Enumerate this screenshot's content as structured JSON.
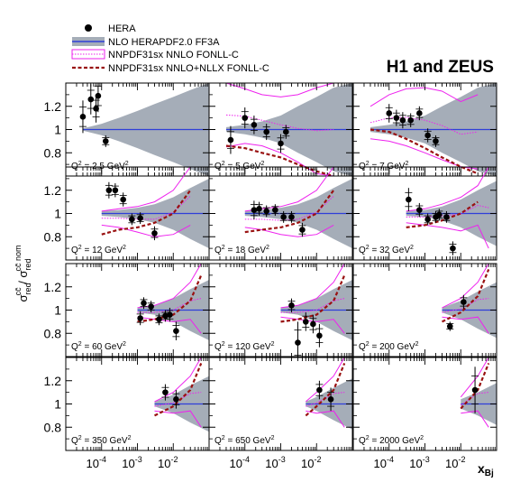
{
  "chart_data": {
    "type": "scatter",
    "title": "H1 and ZEUS",
    "xlabel_main": "x",
    "xlabel_sub": "Bj",
    "ylabel": {
      "num_sigma": "σ",
      "num_sup": "cc̄",
      "num_sub": "red",
      "slash": " / ",
      "den_sigma": "σ",
      "den_sup": "cc̄ nom",
      "den_sub": "red"
    },
    "x_scale": "log",
    "xlim": [
      1e-05,
      0.1
    ],
    "ylim": [
      0.6,
      1.4
    ],
    "x_ticks": [
      {
        "value": 0.0001,
        "base": "10",
        "exp": "-4"
      },
      {
        "value": 0.001,
        "base": "10",
        "exp": "-3"
      },
      {
        "value": 0.01,
        "base": "10",
        "exp": "-2"
      }
    ],
    "y_ticks": [
      {
        "value": 0.8,
        "label": "0.8"
      },
      {
        "value": 1.0,
        "label": "1"
      },
      {
        "value": 1.2,
        "label": "1.2"
      }
    ],
    "legend": {
      "placement": "top-left",
      "entries": [
        {
          "label": "HERA",
          "style": "marker"
        },
        {
          "label": "NLO HERAPDF2.0 FF3A",
          "style": "band"
        },
        {
          "label": "NNPDF31sx NNLO FONLL-C",
          "style": "magenta-box"
        },
        {
          "label": "NNPDF31sx NNLO+NLLX FONLL-C",
          "style": "darkred-dash"
        }
      ]
    },
    "colors": {
      "data": "#000000",
      "herapdf_band": "#a5adb8",
      "herapdf_line": "#2f3fd8",
      "nnlo": "#ee22ee",
      "nllx": "#991111"
    },
    "panels": [
      {
        "q2_label": "Q",
        "q2_sup": "2",
        "q2_value": " = 2.5 GeV",
        "q2_unit_sup": "2",
        "x": [
          3e-05,
          5e-05,
          7e-05,
          8e-05,
          0.00013
        ],
        "y": [
          1.11,
          1.26,
          1.18,
          1.29,
          0.9
        ],
        "y_err": [
          0.14,
          0.13,
          0.12,
          0.14,
          0.05
        ],
        "band": {
          "x": [
            3e-05,
            0.0001,
            0.0003,
            0.001,
            0.003,
            0.01,
            0.03,
            0.1
          ],
          "lo": [
            0.99,
            0.95,
            0.9,
            0.84,
            0.78,
            0.72,
            0.66,
            0.6
          ],
          "hi": [
            1.01,
            1.05,
            1.1,
            1.16,
            1.22,
            1.28,
            1.34,
            1.4
          ]
        },
        "nnlo": null,
        "nllx": null
      },
      {
        "q2_label": "Q",
        "q2_sup": "2",
        "q2_value": " = 5 GeV",
        "q2_unit_sup": "2",
        "x": [
          4e-05,
          0.0001,
          0.00018,
          0.0004,
          0.001,
          0.0014
        ],
        "y": [
          0.91,
          1.1,
          1.04,
          0.98,
          0.88,
          0.98
        ],
        "y_err": [
          0.12,
          0.09,
          0.08,
          0.07,
          0.08,
          0.06
        ],
        "band": {
          "x": [
            3e-05,
            0.0001,
            0.0003,
            0.001,
            0.003,
            0.01,
            0.03,
            0.1
          ],
          "lo": [
            0.98,
            0.96,
            0.93,
            0.88,
            0.8,
            0.72,
            0.64,
            0.6
          ],
          "hi": [
            1.02,
            1.04,
            1.07,
            1.12,
            1.2,
            1.28,
            1.36,
            1.4
          ]
        },
        "nnlo": {
          "x": [
            3e-05,
            0.0001,
            0.0003,
            0.001,
            0.003,
            0.01,
            0.03
          ],
          "lo": [
            0.85,
            0.88,
            0.86,
            0.8,
            0.72,
            0.62,
            0.6
          ],
          "hi": [
            1.4,
            1.35,
            1.3,
            1.28,
            1.3,
            1.36,
            1.4
          ]
        },
        "nllx": {
          "x": [
            3e-05,
            0.0001,
            0.0003,
            0.001,
            0.003,
            0.01,
            0.03
          ],
          "y": [
            0.86,
            0.84,
            0.8,
            0.76,
            0.7,
            0.64,
            0.6
          ]
        }
      },
      {
        "q2_label": "Q",
        "q2_sup": "2",
        "q2_value": " = 7 GeV",
        "q2_unit_sup": "2",
        "x": [
          0.0001,
          0.00016,
          0.00024,
          0.0004,
          0.0007,
          0.0012,
          0.002
        ],
        "y": [
          1.14,
          1.1,
          1.08,
          1.08,
          1.14,
          0.95,
          0.9
        ],
        "y_err": [
          0.08,
          0.07,
          0.07,
          0.06,
          0.06,
          0.06,
          0.05
        ],
        "band": {
          "x": [
            3e-05,
            0.0001,
            0.0003,
            0.001,
            0.003,
            0.01,
            0.03,
            0.1
          ],
          "lo": [
            0.98,
            0.96,
            0.93,
            0.88,
            0.8,
            0.72,
            0.64,
            0.6
          ],
          "hi": [
            1.02,
            1.04,
            1.07,
            1.12,
            1.2,
            1.28,
            1.36,
            1.4
          ]
        },
        "nnlo": {
          "x": [
            3e-05,
            0.0001,
            0.0003,
            0.001,
            0.003,
            0.01,
            0.03
          ],
          "lo": [
            0.92,
            0.9,
            0.86,
            0.8,
            0.74,
            0.68,
            0.66
          ],
          "hi": [
            1.2,
            1.3,
            1.35,
            1.36,
            1.33,
            1.24,
            1.3
          ]
        },
        "nllx": {
          "x": [
            3e-05,
            0.0001,
            0.0003,
            0.001,
            0.003,
            0.01,
            0.03
          ],
          "y": [
            1.0,
            0.98,
            0.92,
            0.84,
            0.76,
            0.68,
            0.62
          ]
        }
      },
      {
        "q2_label": "Q",
        "q2_sup": "2",
        "q2_value": " = 12 GeV",
        "q2_unit_sup": "2",
        "x": [
          0.00016,
          0.00024,
          0.0004,
          0.0007,
          0.0012,
          0.003
        ],
        "y": [
          1.2,
          1.2,
          1.12,
          0.95,
          0.96,
          0.83
        ],
        "y_err": [
          0.07,
          0.06,
          0.06,
          0.05,
          0.05,
          0.06
        ],
        "band": {
          "x": [
            0.0001,
            0.0003,
            0.001,
            0.003,
            0.01,
            0.03,
            0.1
          ],
          "lo": [
            0.98,
            0.97,
            0.95,
            0.92,
            0.86,
            0.78,
            0.7
          ],
          "hi": [
            1.02,
            1.03,
            1.05,
            1.08,
            1.14,
            1.22,
            1.3
          ]
        },
        "nnlo": {
          "x": [
            0.0001,
            0.0003,
            0.001,
            0.003,
            0.01,
            0.03
          ],
          "lo": [
            0.9,
            0.88,
            0.84,
            0.8,
            0.82,
            0.9
          ],
          "hi": [
            1.02,
            1.04,
            1.06,
            1.1,
            1.2,
            1.4
          ]
        },
        "nllx": {
          "x": [
            0.0001,
            0.0003,
            0.001,
            0.003,
            0.01,
            0.03
          ],
          "y": [
            0.82,
            0.86,
            0.88,
            0.92,
            1.0,
            1.2
          ]
        }
      },
      {
        "q2_label": "Q",
        "q2_sup": "2",
        "q2_value": " = 18 GeV",
        "q2_unit_sup": "2",
        "x": [
          0.00018,
          0.00025,
          0.0004,
          0.0007,
          0.0012,
          0.002,
          0.004
        ],
        "y": [
          1.03,
          1.04,
          1.02,
          1.03,
          0.97,
          0.97,
          0.86
        ],
        "y_err": [
          0.08,
          0.06,
          0.05,
          0.05,
          0.05,
          0.05,
          0.06
        ],
        "band": {
          "x": [
            0.0001,
            0.0003,
            0.001,
            0.003,
            0.01,
            0.03,
            0.1
          ],
          "lo": [
            0.98,
            0.97,
            0.95,
            0.92,
            0.86,
            0.78,
            0.7
          ],
          "hi": [
            1.02,
            1.03,
            1.05,
            1.08,
            1.14,
            1.22,
            1.3
          ]
        },
        "nnlo": {
          "x": [
            0.0001,
            0.0003,
            0.001,
            0.003,
            0.01,
            0.03
          ],
          "lo": [
            0.88,
            0.86,
            0.82,
            0.8,
            0.82,
            0.9
          ],
          "hi": [
            1.02,
            1.04,
            1.06,
            1.1,
            1.2,
            1.4
          ]
        },
        "nllx": {
          "x": [
            0.0001,
            0.0003,
            0.001,
            0.003,
            0.01,
            0.03
          ],
          "y": [
            0.84,
            0.86,
            0.88,
            0.92,
            1.0,
            1.2
          ]
        }
      },
      {
        "q2_label": "Q",
        "q2_sup": "2",
        "q2_value": " = 32 GeV",
        "q2_unit_sup": "2",
        "x": [
          0.00035,
          0.0007,
          0.0012,
          0.002,
          0.0025,
          0.004,
          0.006
        ],
        "y": [
          1.12,
          1.03,
          0.95,
          0.97,
          0.99,
          0.97,
          0.7
        ],
        "y_err": [
          0.1,
          0.06,
          0.05,
          0.05,
          0.05,
          0.05,
          0.06
        ],
        "band": {
          "x": [
            0.0003,
            0.001,
            0.003,
            0.01,
            0.03,
            0.1
          ],
          "lo": [
            0.98,
            0.97,
            0.94,
            0.88,
            0.8,
            0.72
          ],
          "hi": [
            1.02,
            1.03,
            1.06,
            1.12,
            1.2,
            1.28
          ]
        },
        "nnlo": {
          "x": [
            0.0003,
            0.001,
            0.003,
            0.01,
            0.03,
            0.06
          ],
          "lo": [
            0.92,
            0.9,
            0.88,
            0.85,
            0.9,
            0.7
          ],
          "hi": [
            1.02,
            1.04,
            1.08,
            1.14,
            1.24,
            1.4
          ]
        },
        "nllx": {
          "x": [
            0.0003,
            0.001,
            0.003,
            0.01,
            0.03
          ],
          "y": [
            0.88,
            0.9,
            0.94,
            1.0,
            1.1
          ]
        }
      },
      {
        "q2_label": "Q",
        "q2_sup": "2",
        "q2_value": " = 60 GeV",
        "q2_unit_sup": "2",
        "x": [
          0.0012,
          0.0015,
          0.0024,
          0.004,
          0.006,
          0.008,
          0.012
        ],
        "y": [
          0.93,
          1.06,
          1.03,
          0.92,
          0.95,
          0.96,
          0.82
        ],
        "y_err": [
          0.06,
          0.05,
          0.05,
          0.05,
          0.05,
          0.06,
          0.08
        ],
        "band": {
          "x": [
            0.001,
            0.003,
            0.01,
            0.03,
            0.1
          ],
          "lo": [
            0.98,
            0.96,
            0.9,
            0.82,
            0.74
          ],
          "hi": [
            1.02,
            1.04,
            1.1,
            1.18,
            1.26
          ]
        },
        "nnlo": {
          "x": [
            0.001,
            0.003,
            0.01,
            0.03,
            0.06
          ],
          "lo": [
            0.94,
            0.92,
            0.9,
            0.92,
            0.8
          ],
          "hi": [
            1.02,
            1.04,
            1.1,
            1.24,
            1.4
          ]
        },
        "nllx": {
          "x": [
            0.001,
            0.003,
            0.01,
            0.03,
            0.06
          ],
          "y": [
            0.9,
            0.92,
            0.96,
            1.08,
            1.3
          ]
        }
      },
      {
        "q2_label": "Q",
        "q2_sup": "2",
        "q2_value": " = 120 GeV",
        "q2_unit_sup": "2",
        "x": [
          0.002,
          0.003,
          0.005,
          0.008,
          0.012
        ],
        "y": [
          1.04,
          0.72,
          0.9,
          0.88,
          0.78
        ],
        "y_err": [
          0.06,
          0.18,
          0.08,
          0.08,
          0.1
        ],
        "band": {
          "x": [
            0.001,
            0.003,
            0.01,
            0.03,
            0.1
          ],
          "lo": [
            0.98,
            0.96,
            0.9,
            0.82,
            0.74
          ],
          "hi": [
            1.02,
            1.04,
            1.1,
            1.18,
            1.26
          ]
        },
        "nnlo": {
          "x": [
            0.001,
            0.003,
            0.01,
            0.03,
            0.06
          ],
          "lo": [
            0.94,
            0.92,
            0.9,
            0.92,
            0.8
          ],
          "hi": [
            1.02,
            1.04,
            1.1,
            1.24,
            1.4
          ]
        },
        "nllx": {
          "x": [
            0.001,
            0.003,
            0.01,
            0.03,
            0.06
          ],
          "y": [
            0.9,
            0.92,
            0.96,
            1.08,
            1.3
          ]
        }
      },
      {
        "q2_label": "Q",
        "q2_sup": "2",
        "q2_value": " = 200 GeV",
        "q2_unit_sup": "2",
        "x": [
          0.005,
          0.012
        ],
        "y": [
          0.86,
          1.07
        ],
        "y_err": [
          0.04,
          0.06
        ],
        "band": {
          "x": [
            0.003,
            0.01,
            0.03,
            0.1
          ],
          "lo": [
            0.98,
            0.92,
            0.84,
            0.76
          ],
          "hi": [
            1.02,
            1.08,
            1.16,
            1.24
          ]
        },
        "nnlo": {
          "x": [
            0.003,
            0.01,
            0.03,
            0.06
          ],
          "lo": [
            0.94,
            0.92,
            0.94,
            0.8
          ],
          "hi": [
            1.02,
            1.1,
            1.24,
            1.4
          ]
        },
        "nllx": {
          "x": [
            0.003,
            0.01,
            0.03,
            0.06
          ],
          "y": [
            0.9,
            0.98,
            1.12,
            1.35
          ]
        }
      },
      {
        "q2_label": "Q",
        "q2_sup": "2",
        "q2_value": " = 350 GeV",
        "q2_unit_sup": "2",
        "x": [
          0.006,
          0.012
        ],
        "y": [
          1.1,
          1.04
        ],
        "y_err": [
          0.07,
          0.08
        ],
        "band": {
          "x": [
            0.003,
            0.01,
            0.03,
            0.1
          ],
          "lo": [
            0.98,
            0.92,
            0.84,
            0.76
          ],
          "hi": [
            1.02,
            1.08,
            1.16,
            1.24
          ]
        },
        "nnlo": {
          "x": [
            0.003,
            0.01,
            0.03,
            0.06
          ],
          "lo": [
            0.94,
            0.92,
            0.94,
            0.8
          ],
          "hi": [
            1.02,
            1.1,
            1.24,
            1.4
          ]
        },
        "nllx": {
          "x": [
            0.003,
            0.01,
            0.03,
            0.06
          ],
          "y": [
            0.9,
            0.98,
            1.12,
            1.35
          ]
        }
      },
      {
        "q2_label": "Q",
        "q2_sup": "2",
        "q2_value": " = 650 GeV",
        "q2_unit_sup": "2",
        "x": [
          0.012,
          0.025
        ],
        "y": [
          1.12,
          1.04
        ],
        "y_err": [
          0.08,
          0.1
        ],
        "band": {
          "x": [
            0.005,
            0.01,
            0.03,
            0.1
          ],
          "lo": [
            0.98,
            0.94,
            0.86,
            0.78
          ],
          "hi": [
            1.02,
            1.06,
            1.14,
            1.22
          ]
        },
        "nnlo": {
          "x": [
            0.005,
            0.01,
            0.03,
            0.06
          ],
          "lo": [
            0.94,
            0.92,
            0.94,
            0.8
          ],
          "hi": [
            1.02,
            1.1,
            1.24,
            1.4
          ]
        },
        "nllx": {
          "x": [
            0.005,
            0.01,
            0.03,
            0.06
          ],
          "y": [
            0.9,
            0.98,
            1.12,
            1.35
          ]
        }
      },
      {
        "q2_label": "Q",
        "q2_sup": "2",
        "q2_value": " = 2000 GeV",
        "q2_unit_sup": "2",
        "x": [
          0.025
        ],
        "y": [
          1.12
        ],
        "y_err": [
          0.2
        ],
        "band": {
          "x": [
            0.01,
            0.03,
            0.1
          ],
          "lo": [
            0.96,
            0.9,
            0.82
          ],
          "hi": [
            1.04,
            1.1,
            1.18
          ]
        },
        "nnlo": {
          "x": [
            0.01,
            0.03,
            0.06
          ],
          "lo": [
            0.92,
            0.94,
            0.8
          ],
          "hi": [
            1.06,
            1.24,
            1.4
          ]
        },
        "nllx": {
          "x": [
            0.01,
            0.03,
            0.06
          ],
          "y": [
            0.96,
            1.12,
            1.35
          ]
        }
      }
    ]
  }
}
